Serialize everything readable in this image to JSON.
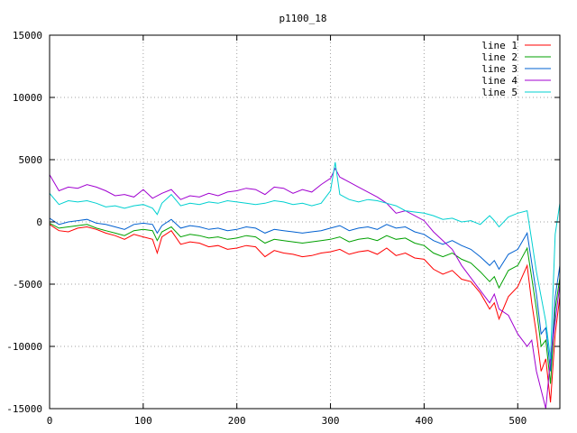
{
  "chart_data": {
    "type": "line",
    "title": "p1100_18",
    "xlabel": "",
    "ylabel": "",
    "xlim": [
      0,
      545
    ],
    "ylim": [
      -15000,
      15000
    ],
    "x_ticks": [
      0,
      100,
      200,
      300,
      400,
      500
    ],
    "y_ticks": [
      -15000,
      -10000,
      -5000,
      0,
      5000,
      10000,
      15000
    ],
    "x_tick_labels": [
      "0",
      "100",
      "200",
      "300",
      "400",
      "500"
    ],
    "y_tick_labels": [
      "-15000",
      "-10000",
      "-5000",
      "0",
      "5000",
      "10000",
      "15000"
    ],
    "grid": true,
    "legend_position": "top-right",
    "series": [
      {
        "name": "line 1",
        "color": "#ff0000",
        "points": [
          [
            0,
            -200
          ],
          [
            10,
            -700
          ],
          [
            20,
            -800
          ],
          [
            30,
            -500
          ],
          [
            40,
            -400
          ],
          [
            50,
            -600
          ],
          [
            60,
            -900
          ],
          [
            70,
            -1100
          ],
          [
            80,
            -1400
          ],
          [
            90,
            -1000
          ],
          [
            100,
            -1200
          ],
          [
            110,
            -1400
          ],
          [
            115,
            -2500
          ],
          [
            120,
            -1200
          ],
          [
            130,
            -700
          ],
          [
            140,
            -1800
          ],
          [
            150,
            -1600
          ],
          [
            160,
            -1700
          ],
          [
            170,
            -2000
          ],
          [
            180,
            -1900
          ],
          [
            190,
            -2200
          ],
          [
            200,
            -2100
          ],
          [
            210,
            -1900
          ],
          [
            220,
            -2000
          ],
          [
            230,
            -2800
          ],
          [
            240,
            -2300
          ],
          [
            250,
            -2500
          ],
          [
            260,
            -2600
          ],
          [
            270,
            -2800
          ],
          [
            280,
            -2700
          ],
          [
            290,
            -2500
          ],
          [
            300,
            -2400
          ],
          [
            310,
            -2200
          ],
          [
            320,
            -2600
          ],
          [
            330,
            -2400
          ],
          [
            340,
            -2300
          ],
          [
            350,
            -2600
          ],
          [
            360,
            -2100
          ],
          [
            370,
            -2700
          ],
          [
            380,
            -2500
          ],
          [
            390,
            -2900
          ],
          [
            400,
            -3000
          ],
          [
            410,
            -3800
          ],
          [
            420,
            -4200
          ],
          [
            430,
            -3900
          ],
          [
            440,
            -4600
          ],
          [
            450,
            -4800
          ],
          [
            460,
            -5700
          ],
          [
            470,
            -7000
          ],
          [
            475,
            -6500
          ],
          [
            480,
            -7800
          ],
          [
            490,
            -6000
          ],
          [
            500,
            -5200
          ],
          [
            510,
            -3500
          ],
          [
            515,
            -6500
          ],
          [
            520,
            -9000
          ],
          [
            525,
            -12000
          ],
          [
            530,
            -11000
          ],
          [
            535,
            -14500
          ],
          [
            540,
            -9000
          ],
          [
            545,
            -6000
          ]
        ]
      },
      {
        "name": "line 2",
        "color": "#00a000",
        "points": [
          [
            0,
            -100
          ],
          [
            10,
            -500
          ],
          [
            20,
            -400
          ],
          [
            30,
            -300
          ],
          [
            40,
            -200
          ],
          [
            50,
            -500
          ],
          [
            60,
            -700
          ],
          [
            70,
            -900
          ],
          [
            80,
            -1100
          ],
          [
            90,
            -700
          ],
          [
            100,
            -600
          ],
          [
            110,
            -700
          ],
          [
            115,
            -1500
          ],
          [
            120,
            -800
          ],
          [
            130,
            -400
          ],
          [
            140,
            -1200
          ],
          [
            150,
            -1000
          ],
          [
            160,
            -1100
          ],
          [
            170,
            -1300
          ],
          [
            180,
            -1200
          ],
          [
            190,
            -1400
          ],
          [
            200,
            -1300
          ],
          [
            210,
            -1100
          ],
          [
            220,
            -1200
          ],
          [
            230,
            -1700
          ],
          [
            240,
            -1400
          ],
          [
            250,
            -1500
          ],
          [
            260,
            -1600
          ],
          [
            270,
            -1700
          ],
          [
            280,
            -1600
          ],
          [
            290,
            -1500
          ],
          [
            300,
            -1400
          ],
          [
            310,
            -1200
          ],
          [
            320,
            -1600
          ],
          [
            330,
            -1400
          ],
          [
            340,
            -1300
          ],
          [
            350,
            -1500
          ],
          [
            360,
            -1100
          ],
          [
            370,
            -1400
          ],
          [
            380,
            -1300
          ],
          [
            390,
            -1700
          ],
          [
            400,
            -1900
          ],
          [
            410,
            -2500
          ],
          [
            420,
            -2800
          ],
          [
            430,
            -2500
          ],
          [
            440,
            -3000
          ],
          [
            450,
            -3300
          ],
          [
            460,
            -4000
          ],
          [
            470,
            -4800
          ],
          [
            475,
            -4400
          ],
          [
            480,
            -5300
          ],
          [
            490,
            -3900
          ],
          [
            500,
            -3500
          ],
          [
            510,
            -2100
          ],
          [
            515,
            -4500
          ],
          [
            520,
            -7000
          ],
          [
            525,
            -10000
          ],
          [
            530,
            -9500
          ],
          [
            535,
            -13000
          ],
          [
            540,
            -7000
          ],
          [
            545,
            -4500
          ]
        ]
      },
      {
        "name": "line 3",
        "color": "#0060d0",
        "points": [
          [
            0,
            300
          ],
          [
            10,
            -200
          ],
          [
            20,
            0
          ],
          [
            30,
            100
          ],
          [
            40,
            200
          ],
          [
            50,
            -100
          ],
          [
            60,
            -200
          ],
          [
            70,
            -400
          ],
          [
            80,
            -600
          ],
          [
            90,
            -200
          ],
          [
            100,
            -100
          ],
          [
            110,
            -200
          ],
          [
            115,
            -900
          ],
          [
            120,
            -300
          ],
          [
            130,
            200
          ],
          [
            140,
            -500
          ],
          [
            150,
            -300
          ],
          [
            160,
            -400
          ],
          [
            170,
            -600
          ],
          [
            180,
            -500
          ],
          [
            190,
            -700
          ],
          [
            200,
            -600
          ],
          [
            210,
            -400
          ],
          [
            220,
            -500
          ],
          [
            230,
            -900
          ],
          [
            240,
            -600
          ],
          [
            250,
            -700
          ],
          [
            260,
            -800
          ],
          [
            270,
            -900
          ],
          [
            280,
            -800
          ],
          [
            290,
            -700
          ],
          [
            300,
            -500
          ],
          [
            310,
            -300
          ],
          [
            320,
            -700
          ],
          [
            330,
            -500
          ],
          [
            340,
            -400
          ],
          [
            350,
            -600
          ],
          [
            360,
            -200
          ],
          [
            370,
            -500
          ],
          [
            380,
            -400
          ],
          [
            390,
            -800
          ],
          [
            400,
            -1000
          ],
          [
            410,
            -1500
          ],
          [
            420,
            -1800
          ],
          [
            430,
            -1500
          ],
          [
            440,
            -1900
          ],
          [
            450,
            -2200
          ],
          [
            460,
            -2800
          ],
          [
            470,
            -3500
          ],
          [
            475,
            -3100
          ],
          [
            480,
            -3800
          ],
          [
            490,
            -2600
          ],
          [
            500,
            -2200
          ],
          [
            510,
            -900
          ],
          [
            515,
            -3300
          ],
          [
            520,
            -5800
          ],
          [
            525,
            -9000
          ],
          [
            530,
            -8500
          ],
          [
            535,
            -12000
          ],
          [
            540,
            -6000
          ],
          [
            545,
            -3500
          ]
        ]
      },
      {
        "name": "line 4",
        "color": "#a000d0",
        "points": [
          [
            0,
            3800
          ],
          [
            10,
            2500
          ],
          [
            20,
            2800
          ],
          [
            30,
            2700
          ],
          [
            40,
            3000
          ],
          [
            50,
            2800
          ],
          [
            60,
            2500
          ],
          [
            70,
            2100
          ],
          [
            80,
            2200
          ],
          [
            90,
            2000
          ],
          [
            100,
            2600
          ],
          [
            110,
            1900
          ],
          [
            120,
            2300
          ],
          [
            130,
            2600
          ],
          [
            140,
            1800
          ],
          [
            150,
            2100
          ],
          [
            160,
            2000
          ],
          [
            170,
            2300
          ],
          [
            180,
            2100
          ],
          [
            190,
            2400
          ],
          [
            200,
            2500
          ],
          [
            210,
            2700
          ],
          [
            220,
            2600
          ],
          [
            230,
            2200
          ],
          [
            240,
            2800
          ],
          [
            250,
            2700
          ],
          [
            260,
            2300
          ],
          [
            270,
            2600
          ],
          [
            280,
            2400
          ],
          [
            290,
            3000
          ],
          [
            300,
            3500
          ],
          [
            305,
            4300
          ],
          [
            310,
            3600
          ],
          [
            320,
            3200
          ],
          [
            330,
            2800
          ],
          [
            340,
            2400
          ],
          [
            350,
            2000
          ],
          [
            360,
            1500
          ],
          [
            370,
            700
          ],
          [
            380,
            900
          ],
          [
            390,
            500
          ],
          [
            400,
            100
          ],
          [
            410,
            -800
          ],
          [
            420,
            -1500
          ],
          [
            430,
            -2200
          ],
          [
            440,
            -3500
          ],
          [
            450,
            -4500
          ],
          [
            460,
            -5500
          ],
          [
            470,
            -6500
          ],
          [
            475,
            -5800
          ],
          [
            480,
            -7000
          ],
          [
            490,
            -7500
          ],
          [
            500,
            -9000
          ],
          [
            510,
            -10000
          ],
          [
            515,
            -9500
          ],
          [
            520,
            -12000
          ],
          [
            525,
            -13500
          ],
          [
            530,
            -15000
          ],
          [
            535,
            -11000
          ],
          [
            540,
            -8000
          ],
          [
            545,
            -5000
          ]
        ]
      },
      {
        "name": "line 5",
        "color": "#00d0d0",
        "points": [
          [
            0,
            2300
          ],
          [
            10,
            1400
          ],
          [
            20,
            1700
          ],
          [
            30,
            1600
          ],
          [
            40,
            1700
          ],
          [
            50,
            1500
          ],
          [
            60,
            1200
          ],
          [
            70,
            1300
          ],
          [
            80,
            1100
          ],
          [
            90,
            1300
          ],
          [
            100,
            1400
          ],
          [
            110,
            1100
          ],
          [
            115,
            600
          ],
          [
            120,
            1500
          ],
          [
            130,
            2200
          ],
          [
            140,
            1300
          ],
          [
            150,
            1500
          ],
          [
            160,
            1400
          ],
          [
            170,
            1600
          ],
          [
            180,
            1500
          ],
          [
            190,
            1700
          ],
          [
            200,
            1600
          ],
          [
            210,
            1500
          ],
          [
            220,
            1400
          ],
          [
            230,
            1500
          ],
          [
            240,
            1700
          ],
          [
            250,
            1600
          ],
          [
            260,
            1400
          ],
          [
            270,
            1500
          ],
          [
            280,
            1300
          ],
          [
            290,
            1500
          ],
          [
            300,
            2500
          ],
          [
            305,
            4800
          ],
          [
            310,
            2200
          ],
          [
            320,
            1800
          ],
          [
            330,
            1600
          ],
          [
            340,
            1800
          ],
          [
            350,
            1700
          ],
          [
            360,
            1500
          ],
          [
            370,
            1300
          ],
          [
            380,
            900
          ],
          [
            390,
            800
          ],
          [
            400,
            700
          ],
          [
            410,
            500
          ],
          [
            420,
            200
          ],
          [
            430,
            300
          ],
          [
            440,
            0
          ],
          [
            450,
            100
          ],
          [
            460,
            -200
          ],
          [
            470,
            500
          ],
          [
            475,
            100
          ],
          [
            480,
            -400
          ],
          [
            490,
            400
          ],
          [
            500,
            700
          ],
          [
            510,
            900
          ],
          [
            515,
            -1500
          ],
          [
            520,
            -4000
          ],
          [
            525,
            -6000
          ],
          [
            530,
            -8000
          ],
          [
            535,
            -11000
          ],
          [
            540,
            -1000
          ],
          [
            545,
            1500
          ]
        ]
      }
    ]
  }
}
